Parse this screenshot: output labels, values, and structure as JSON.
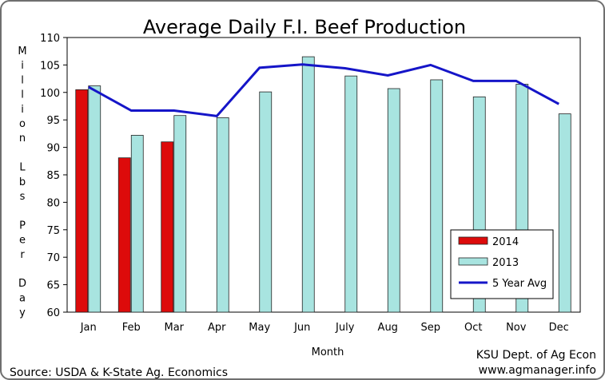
{
  "chart_data": {
    "type": "bar",
    "title": "Average Daily F.I. Beef Production",
    "xlabel": "Month",
    "ylabel_lines": [
      "M",
      "i",
      "l",
      "l",
      "i",
      "o",
      "n",
      "",
      "L",
      "b",
      "s",
      "",
      "P",
      "e",
      "r",
      "",
      "D",
      "a",
      "y"
    ],
    "ylim": [
      60,
      110
    ],
    "yticks": [
      60,
      65,
      70,
      75,
      80,
      85,
      90,
      95,
      100,
      105,
      110
    ],
    "grid": false,
    "legend_position": "bottom-right",
    "categories": [
      "Jan",
      "Feb",
      "Mar",
      "Apr",
      "May",
      "Jun",
      "July",
      "Aug",
      "Sep",
      "Oct",
      "Nov",
      "Dec"
    ],
    "series": [
      {
        "name": "2014",
        "kind": "bar",
        "color": "#dd0b0b",
        "values": [
          100.5,
          88.1,
          91.0,
          null,
          null,
          null,
          null,
          null,
          null,
          null,
          null,
          null
        ]
      },
      {
        "name": "2013",
        "kind": "bar",
        "color": "#a8e4e0",
        "values": [
          101.2,
          92.2,
          95.8,
          95.4,
          100.1,
          106.5,
          103.0,
          100.7,
          102.3,
          99.2,
          101.5,
          96.1
        ]
      },
      {
        "name": "5 Year Avg",
        "kind": "line",
        "color": "#1515c8",
        "values": [
          101.0,
          96.7,
          96.7,
          95.7,
          104.5,
          105.1,
          104.4,
          103.1,
          105.0,
          102.1,
          102.1,
          97.9
        ]
      }
    ]
  },
  "footer": {
    "source": "Source: USDA & K-State Ag. Economics",
    "credit_line1": "KSU Dept. of Ag Econ",
    "credit_line2": "www.agmanager.info"
  }
}
